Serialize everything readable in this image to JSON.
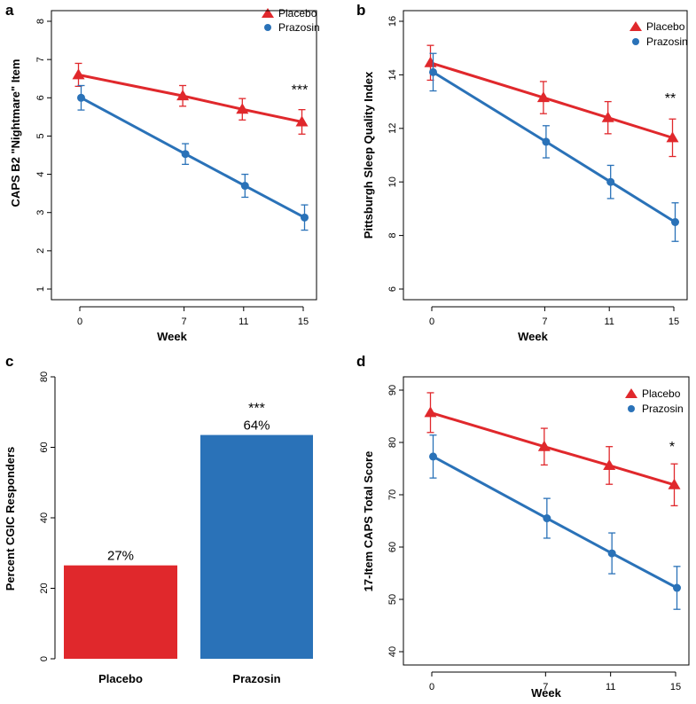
{
  "colors": {
    "placebo": "#e0282c",
    "prazosin": "#2a72b8",
    "axis": "#000000"
  },
  "chart_data": [
    {
      "panel": "a",
      "type": "line",
      "ylabel": "CAPS B2 \"Nightmare\" Item",
      "xlabel": "Week",
      "x": [
        0,
        7,
        11,
        15
      ],
      "ylim": [
        1,
        8
      ],
      "yticks": [
        1,
        2,
        3,
        4,
        5,
        6,
        7,
        8
      ],
      "legend_position": "top-right",
      "series": [
        {
          "name": "Placebo",
          "marker": "triangle",
          "values": [
            6.6,
            6.05,
            5.7,
            5.37
          ],
          "errors": [
            0.3,
            0.27,
            0.28,
            0.32
          ]
        },
        {
          "name": "Prazosin",
          "marker": "circle",
          "values": [
            6.0,
            4.53,
            3.7,
            2.87
          ],
          "errors": [
            0.32,
            0.27,
            0.3,
            0.33
          ]
        }
      ],
      "annotations": [
        {
          "x": 15,
          "text": "***"
        }
      ]
    },
    {
      "panel": "b",
      "type": "line",
      "ylabel": "Pittsburgh Sleep Quality Index",
      "xlabel": "Week",
      "x": [
        0,
        7,
        11,
        15
      ],
      "ylim": [
        6,
        16
      ],
      "yticks": [
        6,
        8,
        10,
        12,
        14,
        16
      ],
      "legend_position": "top-right",
      "series": [
        {
          "name": "Placebo",
          "marker": "triangle",
          "values": [
            14.45,
            13.15,
            12.4,
            11.65
          ],
          "errors": [
            0.65,
            0.6,
            0.6,
            0.7
          ]
        },
        {
          "name": "Prazosin",
          "marker": "circle",
          "values": [
            14.1,
            11.5,
            10.0,
            8.5
          ],
          "errors": [
            0.7,
            0.6,
            0.62,
            0.72
          ]
        }
      ],
      "annotations": [
        {
          "x": 15,
          "text": "**"
        }
      ]
    },
    {
      "panel": "c",
      "type": "bar",
      "ylabel": "Percent CGIC Responders",
      "xlabel": "",
      "categories": [
        "Placebo",
        "Prazosin"
      ],
      "values": [
        26.5,
        63.5
      ],
      "value_labels": [
        "27%",
        "64%"
      ],
      "ylim": [
        0,
        80
      ],
      "yticks": [
        0,
        20,
        40,
        60,
        80
      ],
      "annotations": [
        {
          "category": "Prazosin",
          "text": "***"
        }
      ]
    },
    {
      "panel": "d",
      "type": "line",
      "ylabel": "17-Item CAPS Total Score",
      "xlabel": "Week",
      "x": [
        0,
        7,
        11,
        15
      ],
      "ylim": [
        40,
        90
      ],
      "yticks": [
        40,
        50,
        60,
        70,
        80,
        90
      ],
      "legend_position": "top-right",
      "series": [
        {
          "name": "Placebo",
          "marker": "triangle",
          "values": [
            85.7,
            79.2,
            75.6,
            71.9
          ],
          "errors": [
            3.8,
            3.5,
            3.6,
            4.0
          ]
        },
        {
          "name": "Prazosin",
          "marker": "circle",
          "values": [
            77.3,
            65.5,
            58.8,
            52.2
          ],
          "errors": [
            4.1,
            3.8,
            3.9,
            4.1
          ]
        }
      ],
      "annotations": [
        {
          "x": 15,
          "text": "*"
        }
      ]
    }
  ]
}
